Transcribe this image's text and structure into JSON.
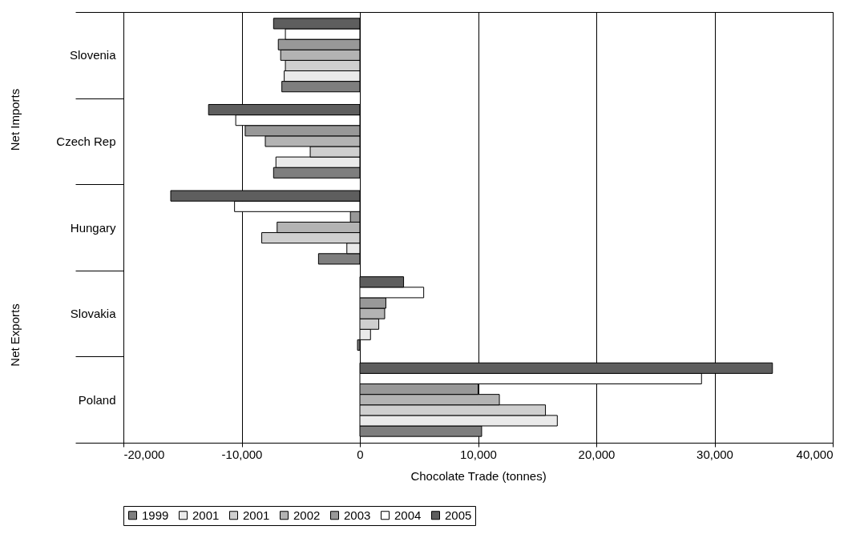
{
  "chart_data": {
    "type": "bar",
    "orientation": "horizontal",
    "xlabel": "Chocolate Trade (tonnes)",
    "categories": [
      "Slovenia",
      "Czech Rep",
      "Hungary",
      "Slovakia",
      "Poland"
    ],
    "series": [
      {
        "name": "1999",
        "color": "#7e7e7e",
        "values": [
          -6600,
          -7300,
          -3500,
          -200,
          10300
        ]
      },
      {
        "name": "2001",
        "color": "#eaeaea",
        "values": [
          -6400,
          -7100,
          -1100,
          900,
          16700
        ]
      },
      {
        "name": "2001",
        "color": "#cfcfcf",
        "values": [
          -6300,
          -4200,
          -8300,
          1600,
          15700
        ]
      },
      {
        "name": "2002",
        "color": "#b3b3b3",
        "values": [
          -6700,
          -8000,
          -7000,
          2100,
          11800
        ]
      },
      {
        "name": "2003",
        "color": "#989898",
        "values": [
          -6900,
          -9700,
          -800,
          2200,
          10000
        ]
      },
      {
        "name": "2004",
        "color": "#ffffff",
        "values": [
          -6300,
          -10500,
          -10600,
          5400,
          28900
        ]
      },
      {
        "name": "2005",
        "color": "#5e5e5e",
        "values": [
          -7300,
          -12800,
          -16000,
          3700,
          34900
        ]
      }
    ],
    "xlim": [
      -20000,
      40000
    ],
    "xticks": [
      {
        "value": -20000,
        "label": "-20,000"
      },
      {
        "value": -10000,
        "label": "-10,000"
      },
      0,
      {
        "value": 10000,
        "label": "10,000"
      },
      {
        "value": 20000,
        "label": "20,000"
      },
      {
        "value": 30000,
        "label": "30,000"
      },
      {
        "value": 40000,
        "label": "40,000"
      }
    ],
    "grid": "x",
    "legend": "bottom",
    "annotations": [
      "Net Imports",
      "Net Exports"
    ]
  }
}
